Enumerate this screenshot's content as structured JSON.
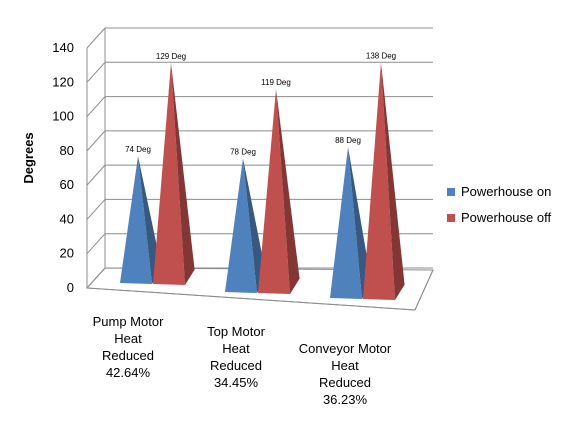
{
  "chart_data": {
    "type": "bar",
    "shape": "3d-pyramid",
    "title": "",
    "xlabel": "",
    "ylabel": "Degrees",
    "ylim": [
      0,
      140
    ],
    "yticks": [
      0,
      20,
      40,
      60,
      80,
      100,
      120,
      140
    ],
    "grid": true,
    "legend_position": "right",
    "categories": [
      [
        "Pump Motor",
        "Heat",
        "Reduced",
        "42.64%"
      ],
      [
        "Top Motor",
        "Heat",
        "Reduced",
        "34.45%"
      ],
      [
        "Conveyor Motor",
        "Heat",
        "Reduced",
        "36.23%"
      ]
    ],
    "series": [
      {
        "name": "Powerhouse on",
        "color": "#4F81BD",
        "values": [
          74,
          78,
          88
        ],
        "labels": [
          "74 Deg",
          "78 Deg",
          "88 Deg"
        ]
      },
      {
        "name": "Powerhouse off",
        "color": "#C0504D",
        "values": [
          129,
          119,
          138
        ],
        "labels": [
          "129 Deg",
          "119 Deg",
          "138 Deg"
        ]
      }
    ]
  }
}
